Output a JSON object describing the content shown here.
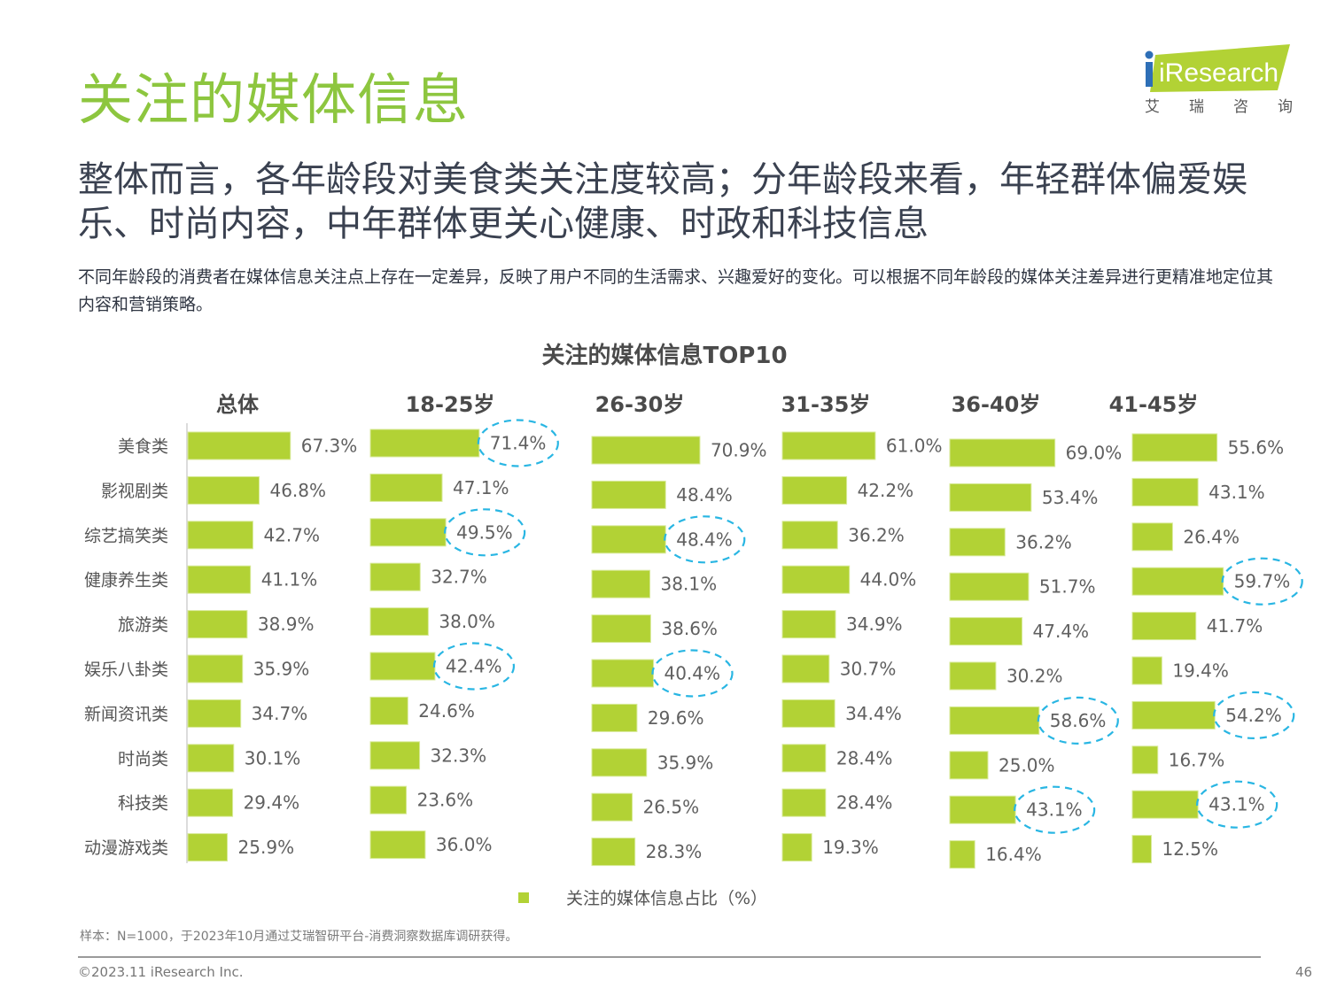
{
  "header": {
    "title": "关注的媒体信息",
    "headline": "整体而言，各年龄段对美食类关注度较高；分年龄段来看，年轻群体偏爱娱乐、时尚内容，中年群体更关心健康、时政和科技信息",
    "intro": "不同年龄段的消费者在媒体信息关注点上存在一定差异，反映了用户不同的生活需求、兴趣爱好的变化。可以根据不同年龄段的媒体关注差异进行更精准地定位其内容和营销策略。"
  },
  "logo": {
    "brand": "iResearch",
    "subtitle_chars": [
      "艾",
      "瑞",
      "咨",
      "询"
    ],
    "brand_color": "#b2d235",
    "dot_color": "#2e6fb7"
  },
  "chart_data": {
    "type": "bar",
    "orientation": "horizontal",
    "title": "关注的媒体信息TOP10",
    "categories": [
      "美食类",
      "影视剧类",
      "综艺搞笑类",
      "健康养生类",
      "旅游类",
      "娱乐八卦类",
      "新闻资讯类",
      "时尚类",
      "科技类",
      "动漫游戏类"
    ],
    "series": [
      {
        "name": "总体",
        "values": [
          67.3,
          46.8,
          42.7,
          41.1,
          38.9,
          35.9,
          34.7,
          30.1,
          29.4,
          25.9
        ],
        "highlighted": []
      },
      {
        "name": "18-25岁",
        "values": [
          71.4,
          47.1,
          49.5,
          32.7,
          38.0,
          42.4,
          24.6,
          32.3,
          23.6,
          36.0
        ],
        "highlighted": [
          0,
          2,
          5
        ]
      },
      {
        "name": "26-30岁",
        "values": [
          70.9,
          48.4,
          48.4,
          38.1,
          38.6,
          40.4,
          29.6,
          35.9,
          26.5,
          28.3
        ],
        "highlighted": [
          2,
          5
        ]
      },
      {
        "name": "31-35岁",
        "values": [
          61.0,
          42.2,
          36.2,
          44.0,
          34.9,
          30.7,
          34.4,
          28.4,
          28.4,
          19.3
        ],
        "highlighted": []
      },
      {
        "name": "36-40岁",
        "values": [
          69.0,
          53.4,
          36.2,
          51.7,
          47.4,
          30.2,
          58.6,
          25.0,
          43.1,
          16.4
        ],
        "highlighted": [
          6,
          8
        ]
      },
      {
        "name": "41-45岁",
        "values": [
          55.6,
          43.1,
          26.4,
          59.7,
          41.7,
          19.4,
          54.2,
          16.7,
          43.1,
          12.5
        ],
        "highlighted": [
          3,
          6,
          8
        ]
      }
    ],
    "value_suffix": "%",
    "legend": {
      "label": "关注的媒体信息占比（%）",
      "position": "bottom"
    },
    "bar_color": "#b2d235",
    "highlight_color": "#29b6e3",
    "xlabel": "",
    "ylabel": ""
  },
  "footer": {
    "sample_note": "样本：N=1000，于2023年10月通过艾瑞智研平台-消费洞察数据库调研获得。",
    "copyright": "©2023.11 iResearch Inc.",
    "page_number": "46"
  }
}
